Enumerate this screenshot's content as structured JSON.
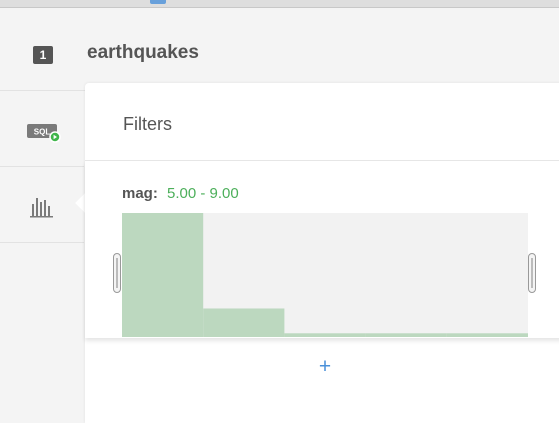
{
  "layer": {
    "badge": "1",
    "title": "earthquakes"
  },
  "sidebar": {
    "items": [
      {
        "name": "sql",
        "icon": "sql-icon",
        "label": "SQL"
      },
      {
        "name": "widgets",
        "icon": "histogram-icon"
      }
    ]
  },
  "panel": {
    "title": "Filters",
    "filter": {
      "column": "mag:",
      "range": "5.00 - 9.00"
    },
    "add_label": "+"
  },
  "colors": {
    "accent_green": "#4caf5a",
    "bar_fill": "#bcd8bf",
    "link_blue": "#4a90d9",
    "track": "#f2f2f2"
  },
  "chart_data": {
    "type": "bar",
    "bins": 5,
    "values": [
      1.0,
      0.23,
      0.03,
      0.03,
      0.03
    ],
    "range": [
      5.0,
      9.0
    ]
  }
}
